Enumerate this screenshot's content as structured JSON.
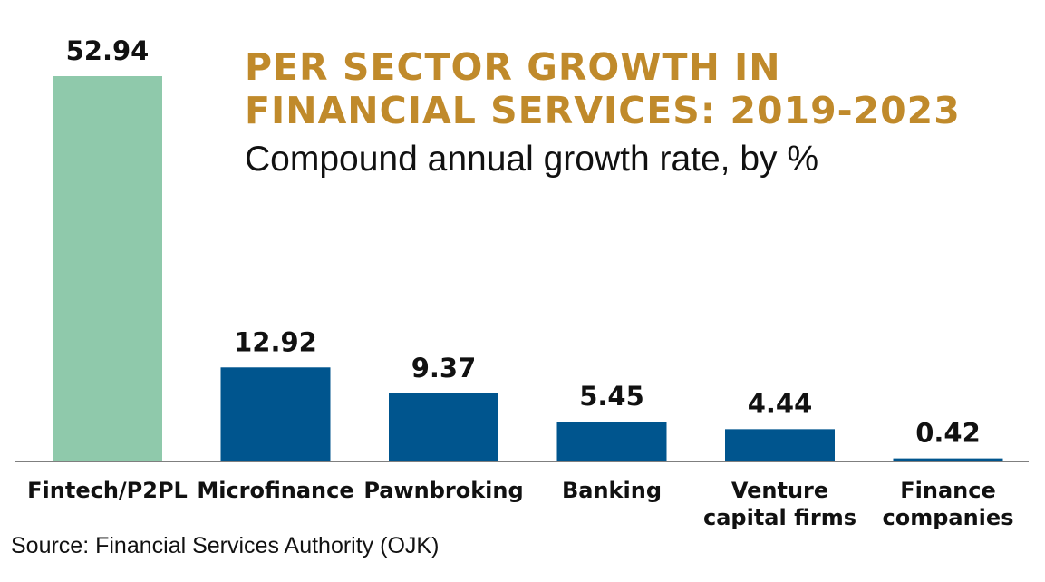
{
  "chart_data": {
    "type": "bar",
    "title": "PER SECTOR GROWTH IN FINANCIAL SERVICES: 2019-2023",
    "subtitle": "Compound annual growth rate, by %",
    "categories": [
      "Fintech/P2PL",
      "Microfinance",
      "Pawnbroking",
      "Banking",
      "Venture capital firms",
      "Finance companies"
    ],
    "category_lines": [
      [
        "Fintech/P2PL"
      ],
      [
        "Microfinance"
      ],
      [
        "Pawnbroking"
      ],
      [
        "Banking"
      ],
      [
        "Venture",
        "capital firms"
      ],
      [
        "Finance",
        "companies"
      ]
    ],
    "values": [
      52.94,
      12.92,
      9.37,
      5.45,
      4.44,
      0.42
    ],
    "value_labels": [
      "52.94",
      "12.92",
      "9.37",
      "5.45",
      "4.44",
      "0.42"
    ],
    "bar_colors": [
      "#8fc9ab",
      "#00558e",
      "#00558e",
      "#00558e",
      "#00558e",
      "#00558e"
    ],
    "ylim": [
      0,
      52.94
    ],
    "grid": false,
    "source": "Source: Financial Services Authority (OJK)"
  },
  "colors": {
    "title": "#c08a2b",
    "highlight_bar": "#8fc9ab",
    "bar": "#00558e",
    "baseline": "#555555"
  }
}
